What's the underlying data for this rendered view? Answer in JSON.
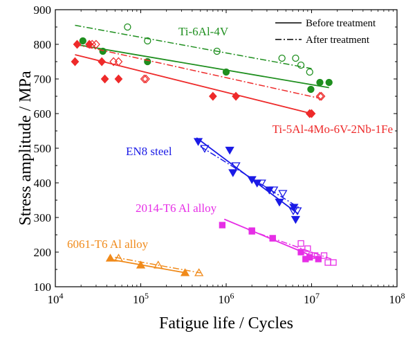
{
  "chart_data": {
    "type": "scatter",
    "xlabel": "Fatigue life / Cycles",
    "ylabel": "Stress amplitude / MPa",
    "x_scale": "log",
    "xlim": [
      10000,
      100000000
    ],
    "ylim": [
      100,
      900
    ],
    "x_ticks": [
      {
        "value": 10000,
        "base": "10",
        "exp": "4"
      },
      {
        "value": 100000,
        "base": "10",
        "exp": "5"
      },
      {
        "value": 1000000,
        "base": "10",
        "exp": "6"
      },
      {
        "value": 10000000,
        "base": "10",
        "exp": "7"
      },
      {
        "value": 100000000,
        "base": "10",
        "exp": "8"
      }
    ],
    "y_ticks": [
      "100",
      "200",
      "300",
      "400",
      "500",
      "600",
      "700",
      "800",
      "900"
    ],
    "legend": {
      "position": "top-right",
      "entries": [
        {
          "label": "Before treatment",
          "line_style": "solid"
        },
        {
          "label": "After treatment",
          "line_style": "dashdot"
        }
      ]
    },
    "materials": [
      {
        "name": "Ti-6Al-4V",
        "color": "#1f8f1f",
        "label": "Ti-6Al-4V",
        "marker": "circle",
        "before": {
          "points": [
            [
              21000,
              810
            ],
            [
              36000,
              780
            ],
            [
              120000,
              750
            ],
            [
              1000000,
              720
            ],
            [
              9800000,
              670
            ],
            [
              12500000,
              690
            ],
            [
              16000000,
              690
            ]
          ],
          "fit": [
            [
              17000,
              800
            ],
            [
              16000000,
              675
            ]
          ]
        },
        "after": {
          "points": [
            [
              70000,
              850
            ],
            [
              120000,
              810
            ],
            [
              780000,
              780
            ],
            [
              4500000,
              760
            ],
            [
              6500000,
              760
            ],
            [
              7500000,
              740
            ],
            [
              9500000,
              720
            ]
          ],
          "fit": [
            [
              17000,
              855
            ],
            [
              10000000,
              730
            ]
          ]
        }
      },
      {
        "name": "Ti-5Al-4Mo-6V-2Nb-1Fe",
        "color": "#ee2a2a",
        "label": "Ti-5Al-4Mo-6V-2Nb-1Fe",
        "marker": "diamond",
        "before": {
          "points": [
            [
              17000,
              750
            ],
            [
              18000,
              800
            ],
            [
              25000,
              800
            ],
            [
              38000,
              700
            ],
            [
              55000,
              700
            ],
            [
              35000,
              750
            ],
            [
              700000,
              650
            ],
            [
              1300000,
              650
            ],
            [
              9500000,
              600
            ],
            [
              10000000,
              600
            ]
          ],
          "fit": [
            [
              17000,
              770
            ],
            [
              10000000,
              600
            ]
          ]
        },
        "after": {
          "points": [
            [
              27000,
              800
            ],
            [
              30000,
              800
            ],
            [
              48000,
              750
            ],
            [
              55000,
              750
            ],
            [
              110000,
              700
            ],
            [
              115000,
              700
            ],
            [
              12500000,
              650
            ],
            [
              13000000,
              650
            ]
          ],
          "fit": [
            [
              17000,
              800
            ],
            [
              12000000,
              645
            ]
          ]
        }
      },
      {
        "name": "EN8 steel",
        "color": "#1a1ae6",
        "label": "EN8 steel",
        "marker": "triangle-down",
        "before": {
          "points": [
            [
              470000,
              520
            ],
            [
              1100000,
              495
            ],
            [
              1200000,
              430
            ],
            [
              2000000,
              410
            ],
            [
              2300000,
              400
            ],
            [
              3200000,
              380
            ],
            [
              4200000,
              345
            ],
            [
              6200000,
              330
            ],
            [
              6500000,
              295
            ]
          ],
          "fit": [
            [
              450000,
              530
            ],
            [
              7000000,
              310
            ]
          ]
        },
        "after": {
          "points": [
            [
              560000,
              500
            ],
            [
              1300000,
              450
            ],
            [
              2600000,
              400
            ],
            [
              3600000,
              380
            ],
            [
              4600000,
              370
            ],
            [
              6100000,
              320
            ],
            [
              6800000,
              320
            ]
          ],
          "fit": [
            [
              500000,
              505
            ],
            [
              7500000,
              325
            ]
          ]
        }
      },
      {
        "name": "2014-T6 Al alloy",
        "color": "#e62ee6",
        "label": "2014-T6 Al alloy",
        "marker": "square",
        "before": {
          "points": [
            [
              900000,
              278
            ],
            [
              2000000,
              260
            ],
            [
              3500000,
              240
            ],
            [
              7500000,
              200
            ],
            [
              8500000,
              180
            ],
            [
              9500000,
              185
            ],
            [
              12000000,
              180
            ]
          ],
          "fit": [
            [
              950000,
              295
            ],
            [
              11000000,
              185
            ]
          ]
        },
        "after": {
          "points": [
            [
              2000000,
              262
            ],
            [
              3500000,
              240
            ],
            [
              7500000,
              225
            ],
            [
              9000000,
              210
            ],
            [
              10000000,
              190
            ],
            [
              11000000,
              190
            ],
            [
              14000000,
              190
            ],
            [
              15500000,
              170
            ],
            [
              18000000,
              170
            ]
          ],
          "fit": [
            [
              1800000,
              265
            ],
            [
              17000000,
              180
            ]
          ]
        }
      },
      {
        "name": "6061-T6 Al alloy",
        "color": "#f08a1a",
        "label": "6061-T6 Al alloy",
        "marker": "triangle-up",
        "before": {
          "points": [
            [
              44000,
              182
            ],
            [
              100000,
              162
            ],
            [
              330000,
              140
            ]
          ],
          "fit": [
            [
              42000,
              180
            ],
            [
              340000,
              140
            ]
          ]
        },
        "after": {
          "points": [
            [
              55000,
              182
            ],
            [
              160000,
              162
            ],
            [
              480000,
              140
            ]
          ],
          "fit": [
            [
              50000,
              185
            ],
            [
              500000,
              140
            ]
          ]
        }
      }
    ]
  }
}
